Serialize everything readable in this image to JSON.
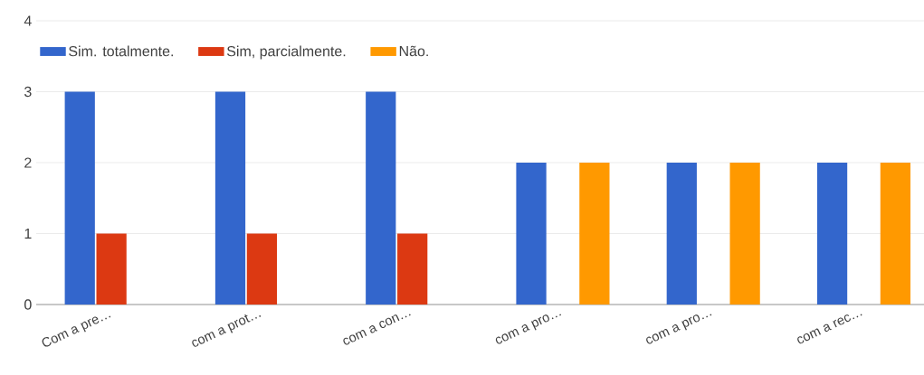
{
  "chart_data": {
    "type": "bar",
    "categories": [
      "Com a pre…",
      "com a prot…",
      "com a con…",
      "com a pro…",
      "com a pro…",
      "com a rec…"
    ],
    "series": [
      {
        "name": "Sim. totalmente.",
        "color": "#3366cc",
        "values": [
          3,
          3,
          3,
          2,
          2,
          2
        ]
      },
      {
        "name": "Sim, parcialmente.",
        "color": "#dc3912",
        "values": [
          1,
          1,
          1,
          0,
          0,
          0
        ]
      },
      {
        "name": "Não.",
        "color": "#ff9900",
        "values": [
          0,
          0,
          0,
          2,
          2,
          2
        ]
      }
    ],
    "ylim": [
      0,
      4
    ],
    "yticks": [
      0,
      1,
      2,
      3,
      4
    ],
    "grid": "y",
    "legend": "top left"
  }
}
